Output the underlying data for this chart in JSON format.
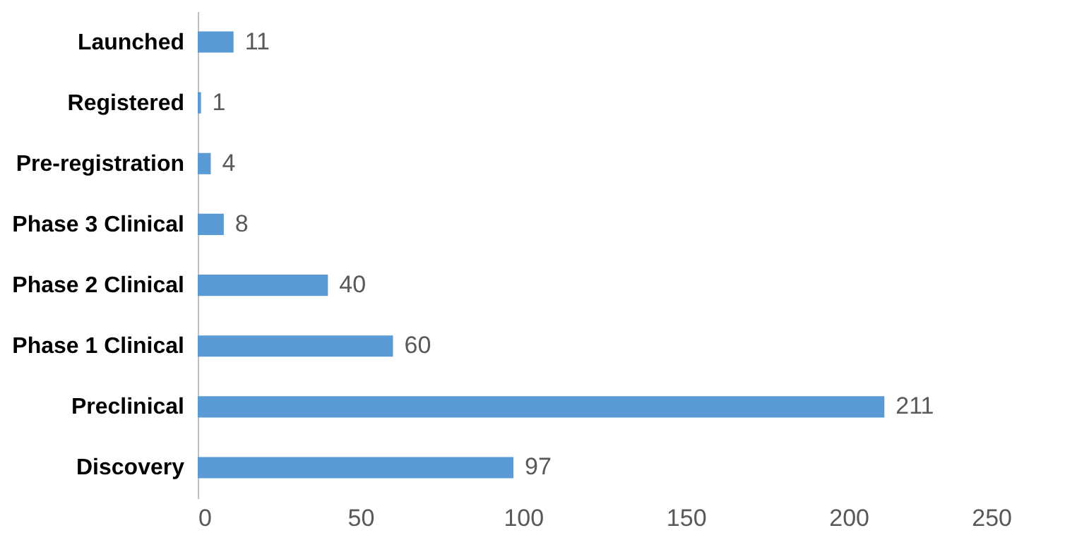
{
  "chart_data": {
    "type": "bar",
    "orientation": "horizontal",
    "categories": [
      "Launched",
      "Registered",
      "Pre-registration",
      "Phase 3 Clinical",
      "Phase 2 Clinical",
      "Phase 1 Clinical",
      "Preclinical",
      "Discovery"
    ],
    "values": [
      11,
      1,
      4,
      8,
      40,
      60,
      211,
      97
    ],
    "color": "#5b9bd5",
    "xlim": [
      0,
      250
    ],
    "xticks": [
      0,
      50,
      100,
      150,
      200,
      250
    ],
    "grid": false,
    "data_labels": true
  }
}
